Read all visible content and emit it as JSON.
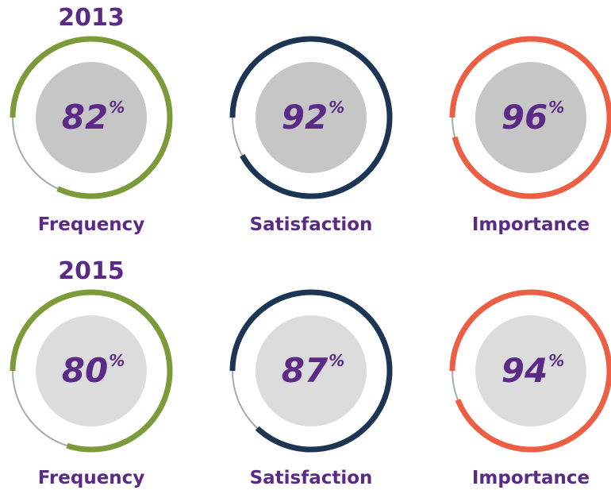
{
  "unit": "%",
  "sections": [
    {
      "title": "2013",
      "charts": [
        {
          "type": "gauge",
          "label": "Frequency",
          "value": 82,
          "ylim": [
            0,
            100
          ],
          "color": "#7b9a3a",
          "inner_color": "#c6c6c6"
        },
        {
          "type": "gauge",
          "label": "Satisfaction",
          "value": 92,
          "ylim": [
            0,
            100
          ],
          "color": "#1c3553",
          "inner_color": "#c6c6c6"
        },
        {
          "type": "gauge",
          "label": "Importance",
          "value": 96,
          "ylim": [
            0,
            100
          ],
          "color": "#ec5f45",
          "inner_color": "#c6c6c6"
        }
      ]
    },
    {
      "title": "2015",
      "charts": [
        {
          "type": "gauge",
          "label": "Frequency",
          "value": 80,
          "ylim": [
            0,
            100
          ],
          "color": "#7b9a3a",
          "inner_color": "#dcdcdc"
        },
        {
          "type": "gauge",
          "label": "Satisfaction",
          "value": 87,
          "ylim": [
            0,
            100
          ],
          "color": "#1c3553",
          "inner_color": "#dcdcdc"
        },
        {
          "type": "gauge",
          "label": "Importance",
          "value": 94,
          "ylim": [
            0,
            100
          ],
          "color": "#ec5f45",
          "inner_color": "#dcdcdc"
        }
      ]
    }
  ]
}
